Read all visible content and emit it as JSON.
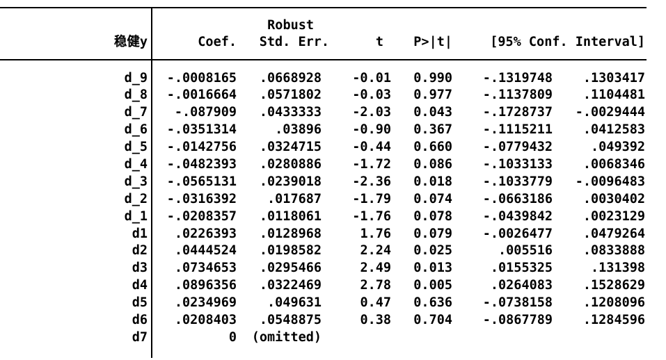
{
  "table": {
    "depvar_label": "稳健y",
    "header": {
      "robust": "Robust",
      "coef": "Coef.",
      "std_err": "Std. Err.",
      "t": "t",
      "p": "P>|t|",
      "ci": "[95% Conf. Interval]"
    },
    "rows": [
      {
        "var": "d_9",
        "coef": "-.0008165",
        "std_err": ".0668928",
        "t": "-0.01",
        "p": "0.990",
        "ci_low": "-.1319748",
        "ci_high": ".1303417"
      },
      {
        "var": "d_8",
        "coef": "-.0016664",
        "std_err": ".0571802",
        "t": "-0.03",
        "p": "0.977",
        "ci_low": "-.1137809",
        "ci_high": ".1104481"
      },
      {
        "var": "d_7",
        "coef": "-.087909",
        "std_err": ".0433333",
        "t": "-2.03",
        "p": "0.043",
        "ci_low": "-.1728737",
        "ci_high": "-.0029444"
      },
      {
        "var": "d_6",
        "coef": "-.0351314",
        "std_err": ".03896",
        "t": "-0.90",
        "p": "0.367",
        "ci_low": "-.1115211",
        "ci_high": ".0412583"
      },
      {
        "var": "d_5",
        "coef": "-.0142756",
        "std_err": ".0324715",
        "t": "-0.44",
        "p": "0.660",
        "ci_low": "-.0779432",
        "ci_high": ".049392"
      },
      {
        "var": "d_4",
        "coef": "-.0482393",
        "std_err": ".0280886",
        "t": "-1.72",
        "p": "0.086",
        "ci_low": "-.1033133",
        "ci_high": ".0068346"
      },
      {
        "var": "d_3",
        "coef": "-.0565131",
        "std_err": ".0239018",
        "t": "-2.36",
        "p": "0.018",
        "ci_low": "-.1033779",
        "ci_high": "-.0096483"
      },
      {
        "var": "d_2",
        "coef": "-.0316392",
        "std_err": ".017687",
        "t": "-1.79",
        "p": "0.074",
        "ci_low": "-.0663186",
        "ci_high": ".0030402"
      },
      {
        "var": "d_1",
        "coef": "-.0208357",
        "std_err": ".0118061",
        "t": "-1.76",
        "p": "0.078",
        "ci_low": "-.0439842",
        "ci_high": ".0023129"
      },
      {
        "var": "d1",
        "coef": ".0226393",
        "std_err": ".0128968",
        "t": "1.76",
        "p": "0.079",
        "ci_low": "-.0026477",
        "ci_high": ".0479264"
      },
      {
        "var": "d2",
        "coef": ".0444524",
        "std_err": ".0198582",
        "t": "2.24",
        "p": "0.025",
        "ci_low": ".005516",
        "ci_high": ".0833888"
      },
      {
        "var": "d3",
        "coef": ".0734653",
        "std_err": ".0295466",
        "t": "2.49",
        "p": "0.013",
        "ci_low": ".0155325",
        "ci_high": ".131398"
      },
      {
        "var": "d4",
        "coef": ".0896356",
        "std_err": ".0322469",
        "t": "2.78",
        "p": "0.005",
        "ci_low": ".0264083",
        "ci_high": ".1528629"
      },
      {
        "var": "d5",
        "coef": ".0234969",
        "std_err": ".049631",
        "t": "0.47",
        "p": "0.636",
        "ci_low": "-.0738158",
        "ci_high": ".1208096"
      },
      {
        "var": "d6",
        "coef": ".0208403",
        "std_err": ".0548875",
        "t": "0.38",
        "p": "0.704",
        "ci_low": "-.0867789",
        "ci_high": ".1284596"
      },
      {
        "var": "d7",
        "coef": "0",
        "std_err": "(omitted)",
        "t": "",
        "p": "",
        "ci_low": "",
        "ci_high": ""
      }
    ]
  },
  "colors": {
    "text": "#000000",
    "rule": "#000000",
    "background": "#ffffff"
  }
}
